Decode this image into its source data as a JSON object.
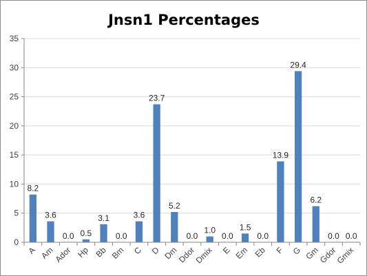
{
  "chart_data": {
    "type": "bar",
    "title": "Jnsn1 Percentages",
    "xlabel": "",
    "ylabel": "",
    "ylim": [
      0,
      35
    ],
    "yticks": [
      0,
      5,
      10,
      15,
      20,
      25,
      30,
      35
    ],
    "grid": true,
    "legend": "none",
    "categories": [
      "A",
      "Am",
      "Ador",
      "Hp",
      "Bb",
      "Bm",
      "C",
      "D",
      "Dm",
      "Ddor",
      "Dmix",
      "E",
      "Em",
      "Eb",
      "F",
      "G",
      "Gm",
      "Gdor",
      "Gmix"
    ],
    "values": [
      8.2,
      3.6,
      0.0,
      0.5,
      3.1,
      0.0,
      3.6,
      23.7,
      5.2,
      0.0,
      1.0,
      0.0,
      1.5,
      0.0,
      13.9,
      29.4,
      6.2,
      0.0,
      0.0
    ],
    "data_labels": [
      "8.2",
      "3.6",
      "0.0",
      "0.5",
      "3.1",
      "0.0",
      "3.6",
      "23.7",
      "5.2",
      "0.0",
      "1.0",
      "0.0",
      "1.5",
      "0.0",
      "13.9",
      "29.4",
      "6.2",
      "0.0",
      "0.0"
    ],
    "bar_color": "#4f81bd",
    "grid_color": "#d9d9d9"
  }
}
